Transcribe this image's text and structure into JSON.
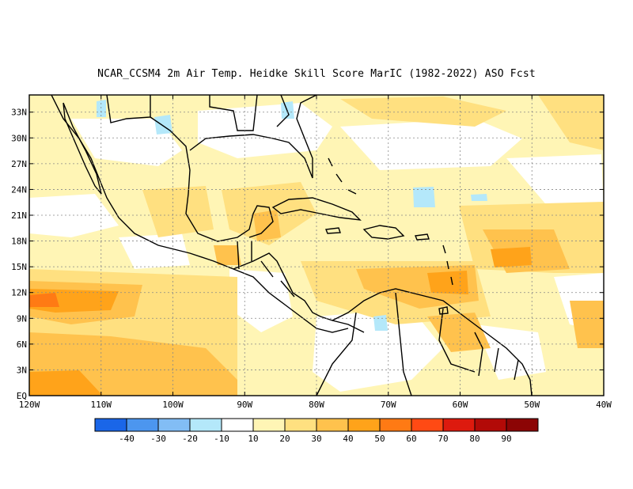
{
  "title": "NCAR_CCSM4  2m Air Temp. Heidke Skill Score MarIC (1982-2022) ASO Fcst",
  "map": {
    "lat_labels": [
      "33N",
      "30N",
      "27N",
      "24N",
      "21N",
      "18N",
      "15N",
      "12N",
      "9N",
      "6N",
      "3N",
      "EQ"
    ],
    "lon_labels": [
      "120W",
      "110W",
      "100W",
      "90W",
      "80W",
      "70W",
      "60W",
      "50W",
      "40W"
    ],
    "lat_range": [
      0,
      35
    ],
    "lon_range": [
      -120,
      -40
    ],
    "grid": true
  },
  "colorbar": {
    "labels": [
      "-40",
      "-30",
      "-20",
      "-10",
      "10",
      "20",
      "30",
      "40",
      "50",
      "60",
      "70",
      "80",
      "90"
    ],
    "colors": [
      "#1a66e8",
      "#4c96ef",
      "#82bdf5",
      "#b4e8fa",
      "#ffffff",
      "#fff5b5",
      "#ffe080",
      "#ffc24d",
      "#ffa31a",
      "#ff7a14",
      "#ff4a14",
      "#dd1a0e",
      "#b20a07",
      "#8c0505"
    ]
  },
  "colors": {
    "skill_10_20": "#fff5b5",
    "skill_20_30": "#ffe080",
    "skill_30_40": "#ffc24d",
    "skill_40_50": "#ffa31a",
    "skill_50_60": "#ff7a14",
    "skill_neg": "#b4e8fa",
    "land_border": "#000000"
  }
}
